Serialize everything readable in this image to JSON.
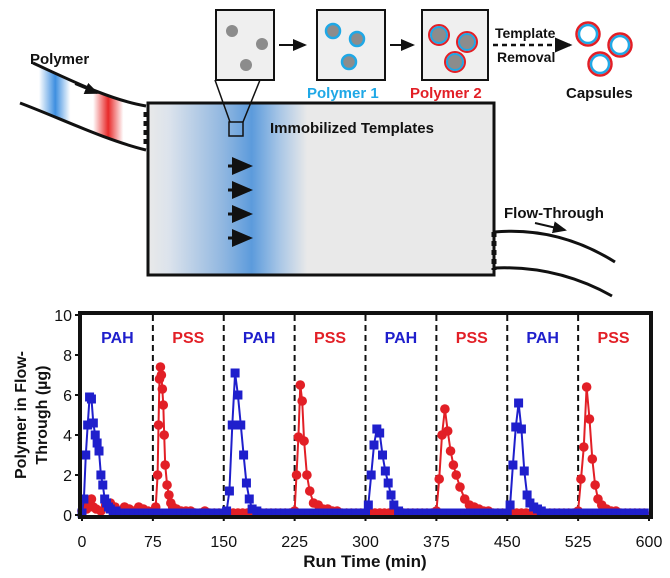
{
  "schematic": {
    "polymer_label": "Polymer",
    "immobilized_label": "Immobilized Templates",
    "flow_through_label": "Flow-Through",
    "polymer1_label": "Polymer 1",
    "polymer2_label": "Polymer 2",
    "template_label": "Template",
    "removal_label": "Removal",
    "capsules_label": "Capsules",
    "colors": {
      "polymer1": "#1FA8E6",
      "polymer2": "#E21F26",
      "template_core": "#8C8C8C",
      "box_fill": "#EFEFEF"
    }
  },
  "chart_data": {
    "type": "line",
    "xlabel": "Run Time (min)",
    "ylabel": "Polymer in Flow-Through (µg)",
    "xlim": [
      0,
      600
    ],
    "ylim": [
      0,
      10
    ],
    "xticks": [
      0,
      75,
      150,
      225,
      300,
      375,
      450,
      525,
      600
    ],
    "yticks": [
      0,
      2,
      4,
      6,
      8,
      10
    ],
    "grid": false,
    "dividers": [
      75,
      150,
      225,
      300,
      375,
      450,
      525
    ],
    "section_labels": [
      {
        "text": "PAH",
        "x": 37.5,
        "color": "#1F1FCC"
      },
      {
        "text": "PSS",
        "x": 112.5,
        "color": "#E21F26"
      },
      {
        "text": "PAH",
        "x": 187.5,
        "color": "#1F1FCC"
      },
      {
        "text": "PSS",
        "x": 262.5,
        "color": "#E21F26"
      },
      {
        "text": "PAH",
        "x": 337.5,
        "color": "#1F1FCC"
      },
      {
        "text": "PSS",
        "x": 412.5,
        "color": "#E21F26"
      },
      {
        "text": "PAH",
        "x": 487.5,
        "color": "#1F1FCC"
      },
      {
        "text": "PSS",
        "x": 562.5,
        "color": "#E21F26"
      }
    ],
    "series": [
      {
        "marker": "circle",
        "color": "#E21F26",
        "x": [
          0,
          2,
          5,
          8,
          10,
          12,
          15,
          20,
          25,
          30,
          35,
          40,
          45,
          50,
          55,
          60,
          65,
          70,
          75,
          78,
          80,
          81,
          82,
          83,
          84,
          85,
          86,
          87,
          88,
          90,
          92,
          94,
          96,
          98,
          100,
          105,
          110,
          115,
          120,
          125,
          130,
          135,
          140,
          145,
          150,
          155,
          160,
          165,
          170,
          175,
          180,
          185,
          190,
          195,
          200,
          205,
          210,
          215,
          220,
          225,
          227,
          229,
          231,
          233,
          235,
          238,
          241,
          245,
          250,
          255,
          260,
          265,
          270,
          275,
          280,
          285,
          290,
          295,
          300,
          305,
          310,
          315,
          320,
          325,
          330,
          335,
          340,
          345,
          350,
          355,
          360,
          365,
          370,
          375,
          378,
          381,
          384,
          387,
          390,
          393,
          396,
          400,
          405,
          410,
          415,
          420,
          425,
          430,
          435,
          440,
          445,
          450,
          455,
          460,
          465,
          470,
          475,
          480,
          485,
          490,
          495,
          500,
          505,
          510,
          515,
          520,
          525,
          528,
          531,
          534,
          537,
          540,
          543,
          546,
          550,
          555,
          560,
          565,
          570,
          575,
          580,
          585,
          590,
          595
        ],
        "y": [
          0.2,
          0.5,
          0.3,
          0.6,
          0.8,
          0.4,
          0.3,
          0.2,
          0.5,
          0.6,
          0.4,
          0.2,
          0.4,
          0.3,
          0.2,
          0.4,
          0.3,
          0.2,
          0.1,
          0.4,
          2.0,
          4.5,
          6.8,
          7.4,
          7.0,
          6.3,
          5.5,
          4.0,
          2.5,
          1.5,
          1.0,
          0.6,
          0.4,
          0.3,
          0.3,
          0.2,
          0.2,
          0.2,
          0.1,
          0.1,
          0.2,
          0.1,
          0.1,
          0.1,
          0.1,
          0.1,
          0.1,
          0.1,
          0.1,
          0.1,
          0.1,
          0.1,
          0.1,
          0.1,
          0.1,
          0.1,
          0.1,
          0.1,
          0.1,
          0.2,
          2.0,
          3.9,
          6.5,
          5.7,
          3.7,
          2.0,
          1.2,
          0.6,
          0.5,
          0.3,
          0.3,
          0.2,
          0.2,
          0.1,
          0.1,
          0.1,
          0.1,
          0.1,
          0.1,
          0.1,
          0.1,
          0.1,
          0.1,
          0.1,
          0.1,
          0.1,
          0.1,
          0.1,
          0.1,
          0.1,
          0.1,
          0.1,
          0.1,
          0.2,
          1.8,
          4.0,
          5.3,
          4.2,
          3.2,
          2.5,
          2.0,
          1.4,
          0.8,
          0.5,
          0.4,
          0.3,
          0.2,
          0.2,
          0.1,
          0.1,
          0.1,
          0.1,
          0.1,
          0.1,
          0.1,
          0.1,
          0.1,
          0.1,
          0.1,
          0.1,
          0.1,
          0.1,
          0.1,
          0.1,
          0.1,
          0.1,
          0.2,
          1.8,
          3.4,
          6.4,
          4.8,
          2.8,
          1.5,
          0.8,
          0.5,
          0.3,
          0.2,
          0.2,
          0.1,
          0.1,
          0.1,
          0.1,
          0.1,
          0.1
        ]
      },
      {
        "marker": "square",
        "color": "#1F1FCC",
        "x": [
          0,
          2,
          4,
          6,
          8,
          10,
          12,
          14,
          16,
          18,
          20,
          22,
          24,
          26,
          28,
          30,
          33,
          36,
          40,
          45,
          50,
          55,
          60,
          65,
          70,
          75,
          80,
          85,
          90,
          95,
          100,
          105,
          110,
          115,
          120,
          125,
          130,
          135,
          140,
          145,
          150,
          153,
          156,
          159,
          162,
          165,
          168,
          171,
          174,
          177,
          180,
          185,
          190,
          195,
          200,
          205,
          210,
          215,
          220,
          225,
          230,
          235,
          240,
          245,
          250,
          255,
          260,
          265,
          270,
          275,
          280,
          285,
          290,
          295,
          300,
          303,
          306,
          309,
          312,
          315,
          318,
          321,
          324,
          327,
          330,
          335,
          340,
          345,
          350,
          355,
          360,
          365,
          370,
          375,
          380,
          385,
          390,
          395,
          400,
          405,
          410,
          415,
          420,
          425,
          430,
          435,
          440,
          445,
          450,
          453,
          456,
          459,
          462,
          465,
          468,
          471,
          474,
          478,
          482,
          486,
          490,
          495,
          500,
          505,
          510,
          515,
          520,
          525,
          530,
          535,
          540,
          545,
          550,
          555,
          560,
          565,
          570,
          575,
          580,
          585,
          590,
          595
        ],
        "y": [
          0.1,
          0.8,
          3.0,
          4.5,
          5.9,
          5.8,
          4.6,
          4.0,
          3.6,
          3.2,
          2.0,
          1.5,
          0.8,
          0.6,
          0.4,
          0.3,
          0.2,
          0.2,
          0.1,
          0.1,
          0.1,
          0.1,
          0.1,
          0.1,
          0.1,
          0.1,
          0.1,
          0.1,
          0.1,
          0.1,
          0.1,
          0.1,
          0.1,
          0.1,
          0.1,
          0.1,
          0.1,
          0.1,
          0.1,
          0.1,
          0.1,
          0.2,
          1.2,
          4.5,
          7.1,
          6.0,
          4.5,
          3.0,
          1.6,
          0.8,
          0.3,
          0.2,
          0.1,
          0.1,
          0.1,
          0.1,
          0.1,
          0.1,
          0.1,
          0.1,
          0.1,
          0.1,
          0.1,
          0.1,
          0.1,
          0.1,
          0.1,
          0.1,
          0.1,
          0.1,
          0.1,
          0.1,
          0.1,
          0.1,
          0.1,
          0.5,
          2.0,
          3.5,
          4.3,
          4.1,
          3.0,
          2.2,
          1.6,
          1.0,
          0.5,
          0.2,
          0.1,
          0.1,
          0.1,
          0.1,
          0.1,
          0.1,
          0.1,
          0.1,
          0.1,
          0.1,
          0.1,
          0.1,
          0.1,
          0.1,
          0.1,
          0.1,
          0.1,
          0.1,
          0.1,
          0.1,
          0.1,
          0.1,
          0.1,
          0.5,
          2.5,
          4.4,
          5.6,
          4.3,
          2.2,
          1.0,
          0.6,
          0.4,
          0.3,
          0.2,
          0.1,
          0.1,
          0.1,
          0.1,
          0.1,
          0.1,
          0.1,
          0.1,
          0.1,
          0.1,
          0.1,
          0.1,
          0.1,
          0.1,
          0.1,
          0.1,
          0.1,
          0.1,
          0.1,
          0.1,
          0.1,
          0.1
        ]
      }
    ]
  }
}
